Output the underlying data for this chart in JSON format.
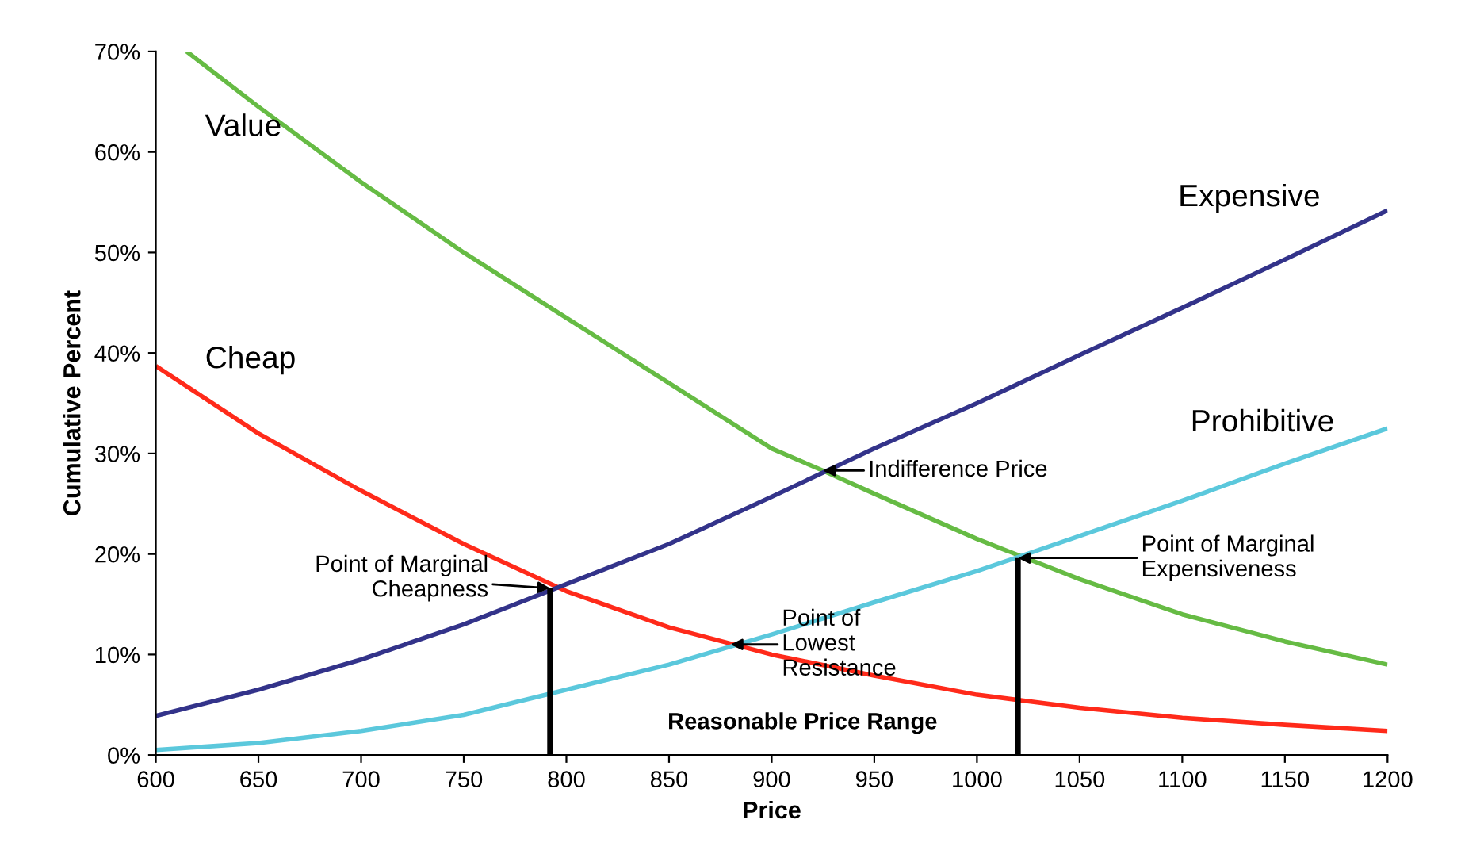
{
  "chart_data": {
    "type": "line",
    "xlabel": "Price",
    "ylabel": "Cumulative Percent",
    "xlim": [
      600,
      1200
    ],
    "xticks": [
      600,
      650,
      700,
      750,
      800,
      850,
      900,
      950,
      1000,
      1050,
      1100,
      1150,
      1200
    ],
    "ylim": [
      0,
      70
    ],
    "yticks": [
      {
        "value": 0,
        "label": "0%"
      },
      {
        "value": 10,
        "label": "10%"
      },
      {
        "value": 20,
        "label": "20%"
      },
      {
        "value": 30,
        "label": "30%"
      },
      {
        "value": 40,
        "label": "40%"
      },
      {
        "value": 50,
        "label": "50%"
      },
      {
        "value": 60,
        "label": "60%"
      },
      {
        "value": 70,
        "label": "70%"
      }
    ],
    "grid": false,
    "legend": false,
    "marker": "none",
    "line_style": "solid",
    "series": [
      {
        "name": "Value",
        "color": "#66bb44",
        "x": [
          615,
          650,
          700,
          750,
          800,
          850,
          900,
          925,
          950,
          1000,
          1050,
          1100,
          1150,
          1200
        ],
        "values": [
          70,
          64.5,
          57,
          50,
          43.5,
          37,
          30.5,
          28.3,
          26,
          21.5,
          17.5,
          14,
          11.3,
          9
        ]
      },
      {
        "name": "Cheap",
        "color": "#ff2a1a",
        "x": [
          600,
          650,
          700,
          750,
          800,
          850,
          900,
          950,
          1000,
          1050,
          1100,
          1150,
          1200
        ],
        "values": [
          38.7,
          32,
          26.3,
          21,
          16.3,
          12.7,
          10,
          7.9,
          6,
          4.7,
          3.7,
          3,
          2.4
        ]
      },
      {
        "name": "Expensive",
        "color": "#33338a",
        "x": [
          600,
          650,
          700,
          750,
          800,
          850,
          900,
          950,
          1000,
          1050,
          1100,
          1150,
          1200
        ],
        "values": [
          3.9,
          6.5,
          9.5,
          13,
          17,
          21,
          25.7,
          30.5,
          35,
          39.8,
          44.5,
          49.3,
          54.2
        ]
      },
      {
        "name": "Prohibitive",
        "color": "#5bc8dc",
        "x": [
          600,
          650,
          700,
          750,
          800,
          850,
          900,
          950,
          1000,
          1050,
          1100,
          1150,
          1200
        ],
        "values": [
          0.5,
          1.2,
          2.4,
          4,
          6.5,
          9,
          12,
          15.2,
          18.3,
          21.8,
          25.3,
          29,
          32.5
        ]
      },
      {
        "color": "#000000",
        "x": [
          792,
          792
        ],
        "values": [
          0,
          16.6
        ]
      },
      {
        "color": "#000000",
        "x": [
          1020,
          1020
        ],
        "values": [
          0,
          19.6
        ]
      }
    ],
    "annotations": [
      {
        "text": "Indifference Price",
        "x": 925,
        "y": 28.3
      },
      {
        "text": "Point of Marginal\nCheapness",
        "x": 792,
        "y": 16.6
      },
      {
        "text": "Point of Marginal\nExpensiveness",
        "x": 1020,
        "y": 19.6
      },
      {
        "text": "Point of\nLowest\nResistance",
        "x": 880,
        "y": 11
      },
      "Reasonable Price Range"
    ]
  }
}
